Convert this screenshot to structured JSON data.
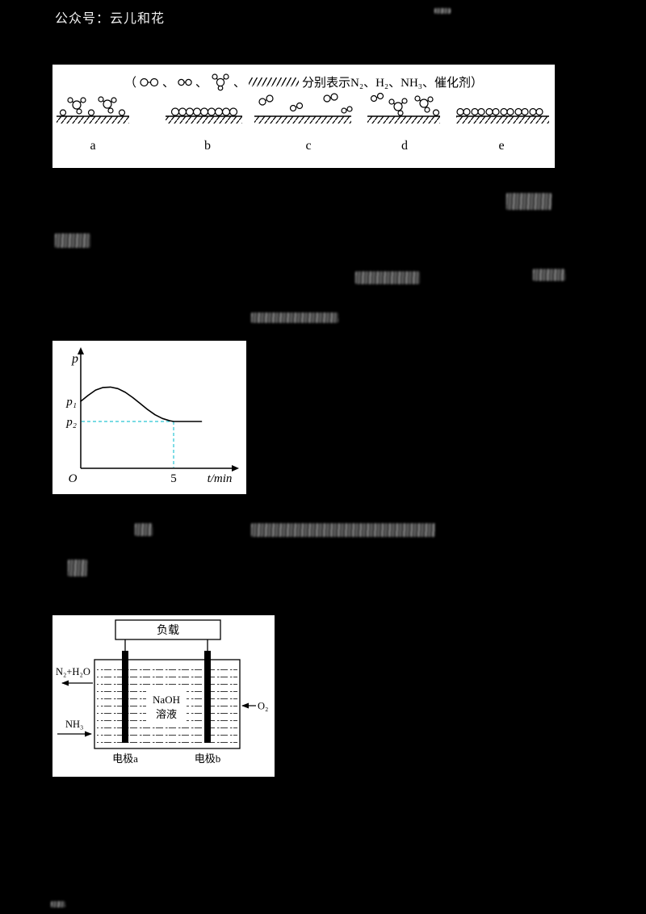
{
  "page": {
    "background_color": "#000000",
    "watermark": "公众号：云儿和花"
  },
  "legend_figure": {
    "open_paren": "（",
    "separator": "、",
    "caption": "分别表示N₂、H₂、NH₃、催化剂）",
    "species": [
      "N₂",
      "H₂",
      "NH₃",
      "催化剂"
    ],
    "stage_labels": [
      "a",
      "b",
      "c",
      "d",
      "e"
    ]
  },
  "pressure_graph": {
    "y_axis_label": "p",
    "y_tick_1": "p₁",
    "y_tick_2": "p₂",
    "origin": "O",
    "x_tick": "5",
    "x_axis_label": "t/min",
    "dash_color": "#29c5d4",
    "chart_data": {
      "type": "line",
      "xlabel": "t/min",
      "ylabel": "p",
      "x_tick_labels": [
        "O",
        "5"
      ],
      "y_tick_labels": [
        "p₁",
        "p₂"
      ],
      "t_min": [
        0,
        0.4,
        0.8,
        1.2,
        1.6,
        2.0,
        2.4,
        2.8,
        3.2,
        3.6,
        4.0,
        4.4,
        4.8,
        5.0,
        5.8,
        6.5
      ],
      "p_over_p2": [
        1.27,
        1.35,
        1.42,
        1.455,
        1.46,
        1.44,
        1.39,
        1.32,
        1.24,
        1.16,
        1.09,
        1.04,
        1.01,
        1.0,
        1.0,
        1.0
      ],
      "annotations": [
        "curve starts at p₁ when t = 0",
        "pressure rises to a maximum then falls",
        "reaches p₂ at t = 5 min and stays constant",
        "dashed guide lines connect (5, p₂) to both axes"
      ]
    }
  },
  "fuel_cell": {
    "load": "负载",
    "outlet_left": "N₂+H₂O",
    "inlet_left": "NH₃",
    "inlet_right": "O₂",
    "electrolyte_line1": "NaOH",
    "electrolyte_line2": "溶液",
    "electrode_a": "电极a",
    "electrode_b": "电极b"
  }
}
